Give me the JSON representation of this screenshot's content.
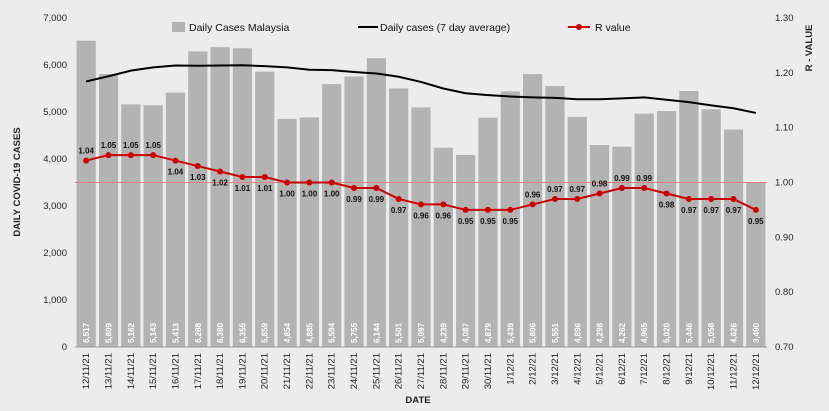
{
  "chart_data": {
    "type": "bar",
    "xlabel": "DATE",
    "ylabel_left": "DAILY COVID-19 CASES",
    "ylabel_right": "R - VALUE",
    "ylim_left": [
      0,
      7000
    ],
    "ylim_right": [
      0.7,
      1.3
    ],
    "left_ticks": [
      "0",
      "1,000",
      "2,000",
      "3,000",
      "4,000",
      "5,000",
      "6,000",
      "7,000"
    ],
    "right_ticks": [
      "0.70",
      "0.80",
      "0.90",
      "1.00",
      "1.10",
      "1.20",
      "1.30"
    ],
    "reference_line_r": 1.0,
    "grid": false,
    "legend_position": "top",
    "categories": [
      "12/11/21",
      "13/11/21",
      "14/11/21",
      "15/11/21",
      "16/11/21",
      "17/11/21",
      "18/11/21",
      "19/11/21",
      "20/11/21",
      "21/11/21",
      "22/11/21",
      "23/11/21",
      "24/11/21",
      "25/11/21",
      "26/11/21",
      "27/11/21",
      "28/11/21",
      "29/11/21",
      "30/11/21",
      "1/12/21",
      "2/12/21",
      "3/12/21",
      "4/12/21",
      "5/12/21",
      "6/12/21",
      "7/12/21",
      "8/12/21",
      "9/12/21",
      "10/12/21",
      "11/12/21",
      "12/12/21"
    ],
    "series": [
      {
        "name": "Daily Cases Malaysia",
        "kind": "bar",
        "axis": "left",
        "color": "#b3b3b3",
        "values": [
          6517,
          5809,
          5162,
          5143,
          5413,
          6288,
          6380,
          6355,
          5859,
          4854,
          4885,
          5594,
          5755,
          6144,
          5501,
          5097,
          4239,
          4087,
          4879,
          5439,
          5806,
          5551,
          4896,
          4298,
          4262,
          4965,
          5020,
          5446,
          5058,
          4626,
          3490
        ],
        "labels": [
          "6,517",
          "5,809",
          "5,162",
          "5,143",
          "5,413",
          "6,288",
          "6,380",
          "6,355",
          "5,859",
          "4,854",
          "4,885",
          "5,594",
          "5,755",
          "6,144",
          "5,501",
          "5,097",
          "4,239",
          "4,087",
          "4,879",
          "5,439",
          "5,806",
          "5,551",
          "4,896",
          "4,298",
          "4,262",
          "4,965",
          "5,020",
          "5,446",
          "5,058",
          "4,626",
          "3,490"
        ]
      },
      {
        "name": "Daily cases (7 day average)",
        "kind": "line",
        "axis": "left",
        "color": "#000000",
        "values": [
          5650,
          5760,
          5880,
          5950,
          5990,
          5985,
          5990,
          5995,
          5975,
          5950,
          5900,
          5890,
          5850,
          5820,
          5750,
          5640,
          5500,
          5400,
          5360,
          5330,
          5310,
          5300,
          5270,
          5270,
          5290,
          5310,
          5260,
          5210,
          5140,
          5080,
          4980
        ]
      },
      {
        "name": "R value",
        "kind": "line",
        "axis": "right",
        "color": "#cc0000",
        "values": [
          1.04,
          1.05,
          1.05,
          1.05,
          1.04,
          1.03,
          1.02,
          1.01,
          1.01,
          1.0,
          1.0,
          1.0,
          0.99,
          0.99,
          0.97,
          0.96,
          0.96,
          0.95,
          0.95,
          0.95,
          0.96,
          0.97,
          0.97,
          0.98,
          0.99,
          0.99,
          0.98,
          0.97,
          0.97,
          0.97,
          0.95
        ],
        "labels": [
          "1.04",
          "1.05",
          "1.05",
          "1.05",
          "1.04",
          "1.03",
          "1.02",
          "1.01",
          "1.01",
          "1.00",
          "1.00",
          "1.00",
          "0.99",
          "0.99",
          "0.97",
          "0.96",
          "0.96",
          "0.95",
          "0.95",
          "0.95",
          "0.96",
          "0.97",
          "0.97",
          "0.98",
          "0.99",
          "0.99",
          "0.98",
          "0.97",
          "0.97",
          "0.97",
          "0.95"
        ]
      }
    ]
  }
}
